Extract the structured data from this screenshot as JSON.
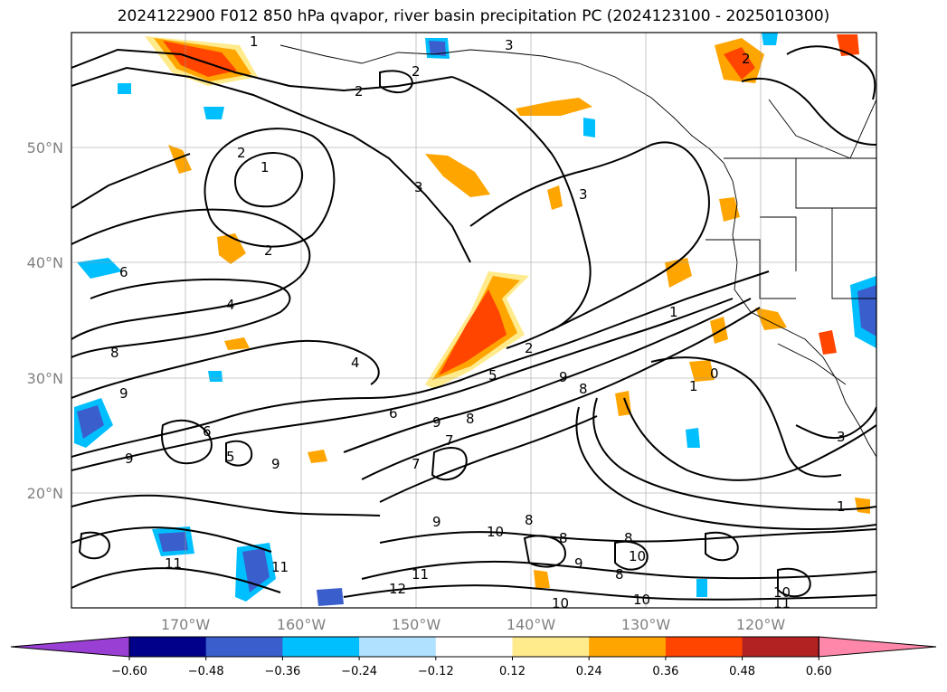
{
  "title": "2024122900 F012 850 hPa qvapor, river basin precipitation PC (2024123100 - 2025010300)",
  "lat_labels": [
    "50°N",
    "40°N",
    "30°N",
    "20°N"
  ],
  "lon_labels": [
    "170°W",
    "160°W",
    "150°W",
    "140°W",
    "130°W",
    "120°W"
  ],
  "colorbar": {
    "colors": [
      "#9a3fd4",
      "#00008b",
      "#3a5fcd",
      "#00bfff",
      "#b0e2ff",
      "#ffffff",
      "#ffeb8c",
      "#ffa500",
      "#ff4500",
      "#b22222",
      "#ff88aa"
    ],
    "tick_labels": [
      "−0.60",
      "−0.48",
      "−0.36",
      "−0.24",
      "−0.12",
      "0.12",
      "0.24",
      "0.36",
      "0.48",
      "0.60"
    ]
  },
  "contour_labels": [
    "1",
    "2",
    "3",
    "2",
    "2",
    "1",
    "3",
    "2",
    "3",
    "4",
    "6",
    "8",
    "9",
    "4",
    "5",
    "6",
    "9",
    "8",
    "7",
    "9",
    "8",
    "6",
    "9",
    "5",
    "9",
    "7",
    "10",
    "8",
    "9",
    "11",
    "11",
    "12",
    "10",
    "8",
    "10",
    "8",
    "11",
    "10",
    "1",
    "2",
    "0",
    "1",
    "3",
    "1",
    "2",
    "8",
    "9",
    "10",
    "11"
  ]
}
